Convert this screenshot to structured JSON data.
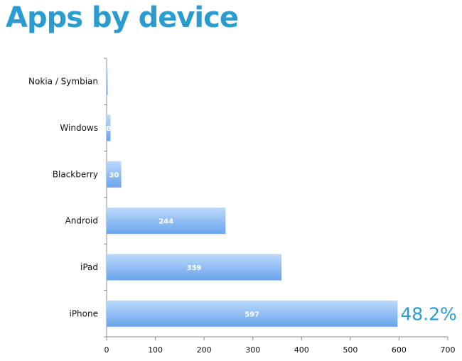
{
  "chart_data": {
    "type": "bar",
    "orientation": "horizontal",
    "title": "Apps by device",
    "categories": [
      "Nokia / Symbian",
      "Windows",
      "Blackberry",
      "Android",
      "iPad",
      "iPhone"
    ],
    "values": [
      1,
      8,
      30,
      244,
      359,
      597
    ],
    "value_labels": [
      "",
      "8",
      "30",
      "244",
      "359",
      "597"
    ],
    "xlim": [
      0,
      700
    ],
    "xticks": [
      "0",
      "100",
      "200",
      "300",
      "400",
      "500",
      "600",
      "700"
    ],
    "grid": false,
    "annotations": [
      {
        "category": "iPhone",
        "text": "48.2%"
      }
    ],
    "colors": {
      "bar_top": "#bcd9fb",
      "bar_bottom": "#6aa4ec",
      "title": "#2a9ccf",
      "annotation": "#2a9ccf",
      "axis": "#8c8c8c"
    }
  }
}
